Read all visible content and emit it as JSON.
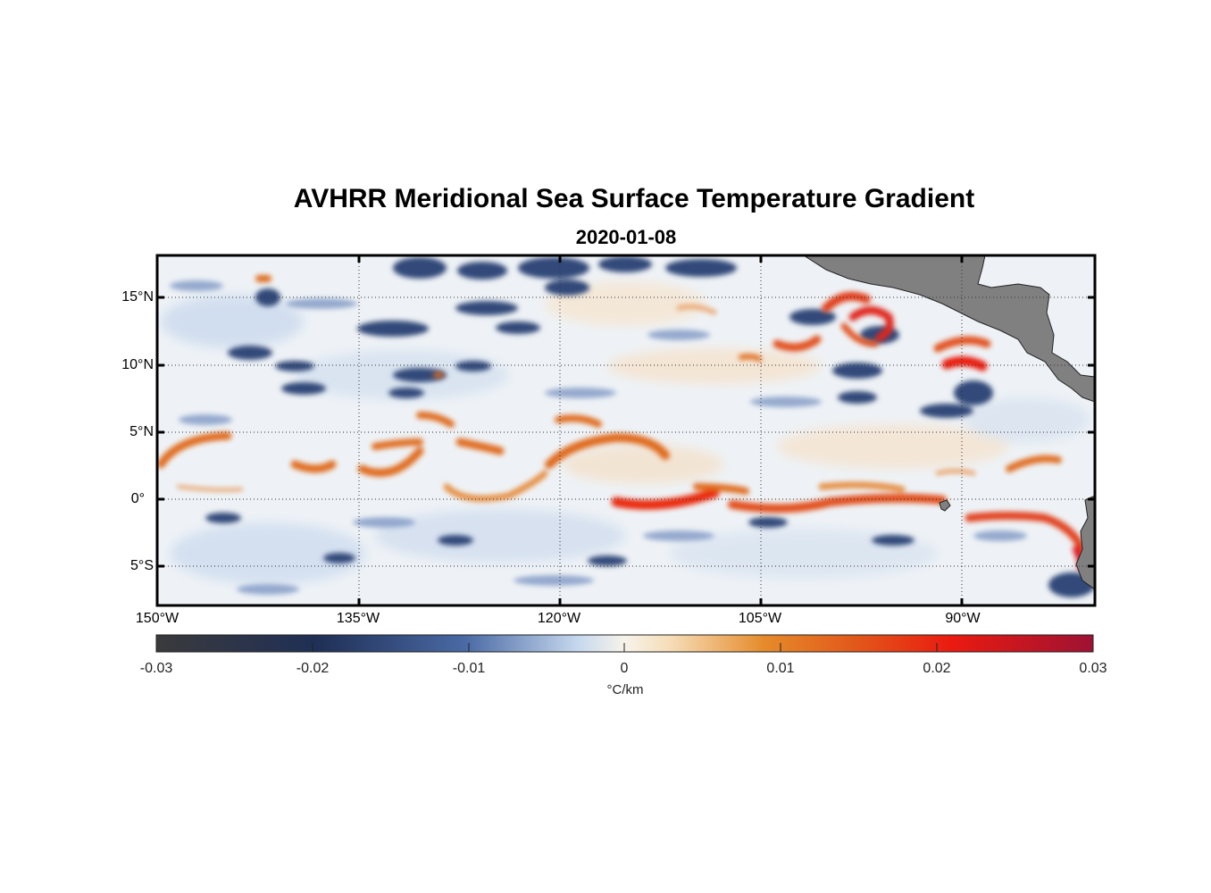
{
  "title": "AVHRR Meridional Sea Surface Temperature Gradient",
  "subtitle": "2020-01-08",
  "colorbar": {
    "unit": "°C/km",
    "tick_labels": [
      "-0.03",
      "-0.02",
      "-0.01",
      "0",
      "0.01",
      "0.02",
      "0.03"
    ],
    "range": [
      -0.03,
      0.03
    ],
    "colors": [
      "#3a3a3c",
      "#1f2f55",
      "#4a6aa5",
      "#c6d8ee",
      "#f7f3ea",
      "#f6dcb6",
      "#e58a2a",
      "#e2561a",
      "#ea1a10",
      "#9e1233"
    ]
  },
  "axes": {
    "lon_labels": [
      "150°W",
      "135°W",
      "120°W",
      "105°W",
      "90°W"
    ],
    "lat_labels": [
      "15°N",
      "10°N",
      "5°N",
      "0°",
      "5°S"
    ],
    "lon_range": [
      -150,
      -80
    ],
    "lat_range": [
      -8,
      18
    ],
    "grid": "dotted"
  },
  "land_color": "#808080"
}
